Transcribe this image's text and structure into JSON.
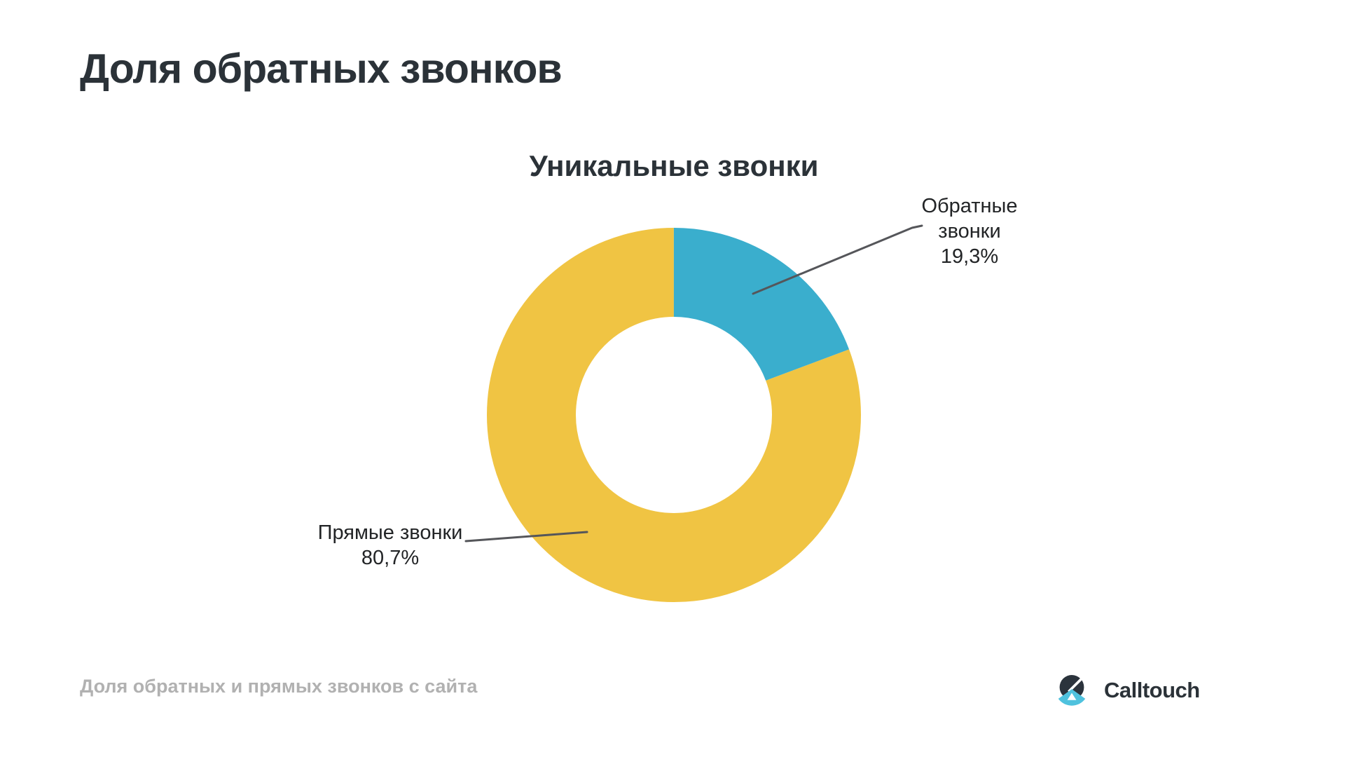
{
  "page": {
    "title": "Доля обратных звонков"
  },
  "chart_data": {
    "type": "pie",
    "subtype": "donut",
    "title": "Уникальные звонки",
    "categories": [
      "Обратные звонки",
      "Прямые звонки"
    ],
    "values": [
      19.3,
      80.7
    ],
    "series": [
      {
        "key": "callback-calls",
        "name": "Обратные звонки",
        "value": 19.3,
        "value_label": "19,3%",
        "color": "#3AAECD"
      },
      {
        "key": "direct-calls",
        "name": "Прямые звонки",
        "value": 80.7,
        "value_label": "80,7%",
        "color": "#F0C443"
      }
    ],
    "start_angle_deg": 0,
    "direction": "clockwise",
    "labels": "callout",
    "legend_position": "none",
    "total": 100
  },
  "footer": {
    "caption": "Доля обратных и прямых звонков с сайта",
    "logo_text": "Calltouch"
  },
  "colors": {
    "heading_text": "#2B3238",
    "label_text": "#222426",
    "callback_blue": "#3AAECD",
    "direct_yellow": "#F0C443",
    "leader_line": "#55565A",
    "caption_gray": "#B1B1B1",
    "logo_dark": "#2B333C",
    "logo_blue": "#4FC2DE"
  }
}
